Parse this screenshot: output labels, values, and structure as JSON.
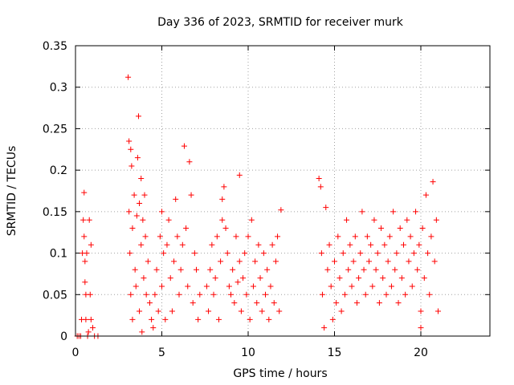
{
  "chart_data": {
    "type": "scatter",
    "title": "Day 336 of 2023, SRMTID for receiver murk",
    "xlabel": "GPS time / hours",
    "ylabel": "SRMTID / TECUs",
    "xlim": [
      0,
      24
    ],
    "ylim": [
      0,
      0.35
    ],
    "xticks": [
      0,
      5,
      10,
      15,
      20
    ],
    "yticks": [
      0,
      0.05,
      0.1,
      0.15,
      0.2,
      0.25,
      0.3,
      0.35
    ],
    "grid": true,
    "marker": "plus",
    "color": "#ff0000",
    "series": [
      {
        "points": [
          [
            0.1,
            0
          ],
          [
            0.2,
            0
          ],
          [
            0.3,
            0
          ],
          [
            0.35,
            0.02
          ],
          [
            0.4,
            0.1
          ],
          [
            0.45,
            0.14
          ],
          [
            0.5,
            0.173
          ],
          [
            0.5,
            0.12
          ],
          [
            0.55,
            0.09
          ],
          [
            0.55,
            0.065
          ],
          [
            0.6,
            0.05
          ],
          [
            0.6,
            0.02
          ],
          [
            0.65,
            0.1
          ],
          [
            0.7,
            0.0
          ],
          [
            0.75,
            0.005
          ],
          [
            0.8,
            0.14
          ],
          [
            0.85,
            0.05
          ],
          [
            0.9,
            0.11
          ],
          [
            0.9,
            0.02
          ],
          [
            1.0,
            0.01
          ],
          [
            1.1,
            0
          ],
          [
            1.3,
            0
          ],
          [
            3.05,
            0.312
          ],
          [
            3.1,
            0.235
          ],
          [
            3.1,
            0.15
          ],
          [
            3.15,
            0.1
          ],
          [
            3.2,
            0.225
          ],
          [
            3.2,
            0.05
          ],
          [
            3.25,
            0.205
          ],
          [
            3.3,
            0.13
          ],
          [
            3.3,
            0.02
          ],
          [
            3.4,
            0.17
          ],
          [
            3.45,
            0.08
          ],
          [
            3.5,
            0.06
          ],
          [
            3.55,
            0.145
          ],
          [
            3.6,
            0.215
          ],
          [
            3.65,
            0.265
          ],
          [
            3.7,
            0.16
          ],
          [
            3.7,
            0.03
          ],
          [
            3.8,
            0.19
          ],
          [
            3.8,
            0.11
          ],
          [
            3.85,
            0.005
          ],
          [
            3.9,
            0.14
          ],
          [
            3.95,
            0.07
          ],
          [
            4.0,
            0.17
          ],
          [
            4.05,
            0.12
          ],
          [
            4.1,
            0.05
          ],
          [
            4.2,
            0.09
          ],
          [
            4.3,
            0.04
          ],
          [
            4.4,
            0.02
          ],
          [
            4.5,
            0.01
          ],
          [
            4.6,
            0.05
          ],
          [
            4.7,
            0.08
          ],
          [
            4.8,
            0.03
          ],
          [
            4.9,
            0.12
          ],
          [
            5.0,
            0.15
          ],
          [
            5.0,
            0.06
          ],
          [
            5.1,
            0.1
          ],
          [
            5.2,
            0.02
          ],
          [
            5.3,
            0.11
          ],
          [
            5.4,
            0.14
          ],
          [
            5.5,
            0.07
          ],
          [
            5.6,
            0.03
          ],
          [
            5.7,
            0.09
          ],
          [
            5.8,
            0.165
          ],
          [
            5.9,
            0.12
          ],
          [
            6.0,
            0.05
          ],
          [
            6.1,
            0.08
          ],
          [
            6.2,
            0.11
          ],
          [
            6.3,
            0.229
          ],
          [
            6.4,
            0.13
          ],
          [
            6.5,
            0.06
          ],
          [
            6.6,
            0.21
          ],
          [
            6.7,
            0.17
          ],
          [
            6.8,
            0.04
          ],
          [
            6.9,
            0.1
          ],
          [
            7.0,
            0.08
          ],
          [
            7.1,
            0.02
          ],
          [
            7.2,
            0.05
          ],
          [
            7.6,
            0.06
          ],
          [
            7.7,
            0.03
          ],
          [
            7.8,
            0.08
          ],
          [
            7.9,
            0.11
          ],
          [
            8.0,
            0.05
          ],
          [
            8.1,
            0.07
          ],
          [
            8.2,
            0.12
          ],
          [
            8.3,
            0.02
          ],
          [
            8.4,
            0.09
          ],
          [
            8.5,
            0.165
          ],
          [
            8.5,
            0.14
          ],
          [
            8.6,
            0.18
          ],
          [
            8.7,
            0.13
          ],
          [
            8.8,
            0.1
          ],
          [
            8.9,
            0.06
          ],
          [
            9.0,
            0.05
          ],
          [
            9.1,
            0.08
          ],
          [
            9.2,
            0.04
          ],
          [
            9.3,
            0.12
          ],
          [
            9.4,
            0.065
          ],
          [
            9.5,
            0.194
          ],
          [
            9.5,
            0.09
          ],
          [
            9.6,
            0.03
          ],
          [
            9.7,
            0.07
          ],
          [
            9.8,
            0.1
          ],
          [
            9.9,
            0.05
          ],
          [
            10.0,
            0.12
          ],
          [
            10.1,
            0.02
          ],
          [
            10.2,
            0.14
          ],
          [
            10.3,
            0.06
          ],
          [
            10.4,
            0.09
          ],
          [
            10.5,
            0.04
          ],
          [
            10.6,
            0.11
          ],
          [
            10.7,
            0.07
          ],
          [
            10.8,
            0.03
          ],
          [
            10.9,
            0.1
          ],
          [
            11.0,
            0.05
          ],
          [
            11.1,
            0.08
          ],
          [
            11.2,
            0.02
          ],
          [
            11.3,
            0.06
          ],
          [
            11.4,
            0.11
          ],
          [
            11.5,
            0.04
          ],
          [
            11.6,
            0.09
          ],
          [
            11.7,
            0.12
          ],
          [
            11.8,
            0.03
          ],
          [
            11.9,
            0.152
          ],
          [
            14.1,
            0.19
          ],
          [
            14.2,
            0.18
          ],
          [
            14.25,
            0.1
          ],
          [
            14.3,
            0.05
          ],
          [
            14.4,
            0.01
          ],
          [
            14.5,
            0.155
          ],
          [
            14.6,
            0.08
          ],
          [
            14.7,
            0.11
          ],
          [
            14.8,
            0.06
          ],
          [
            14.9,
            0.02
          ],
          [
            15.0,
            0.09
          ],
          [
            15.1,
            0.04
          ],
          [
            15.2,
            0.12
          ],
          [
            15.3,
            0.07
          ],
          [
            15.4,
            0.03
          ],
          [
            15.5,
            0.1
          ],
          [
            15.6,
            0.05
          ],
          [
            15.7,
            0.14
          ],
          [
            15.8,
            0.08
          ],
          [
            15.9,
            0.11
          ],
          [
            16.0,
            0.06
          ],
          [
            16.1,
            0.09
          ],
          [
            16.2,
            0.12
          ],
          [
            16.3,
            0.04
          ],
          [
            16.4,
            0.07
          ],
          [
            16.5,
            0.1
          ],
          [
            16.6,
            0.15
          ],
          [
            16.7,
            0.08
          ],
          [
            16.8,
            0.05
          ],
          [
            16.9,
            0.12
          ],
          [
            17.0,
            0.09
          ],
          [
            17.1,
            0.11
          ],
          [
            17.2,
            0.06
          ],
          [
            17.3,
            0.14
          ],
          [
            17.4,
            0.08
          ],
          [
            17.5,
            0.1
          ],
          [
            17.6,
            0.04
          ],
          [
            17.7,
            0.13
          ],
          [
            17.8,
            0.07
          ],
          [
            17.9,
            0.11
          ],
          [
            18.0,
            0.05
          ],
          [
            18.1,
            0.09
          ],
          [
            18.2,
            0.12
          ],
          [
            18.3,
            0.06
          ],
          [
            18.4,
            0.15
          ],
          [
            18.5,
            0.08
          ],
          [
            18.6,
            0.1
          ],
          [
            18.7,
            0.04
          ],
          [
            18.8,
            0.13
          ],
          [
            18.9,
            0.07
          ],
          [
            19.0,
            0.11
          ],
          [
            19.1,
            0.05
          ],
          [
            19.2,
            0.14
          ],
          [
            19.3,
            0.09
          ],
          [
            19.4,
            0.12
          ],
          [
            19.5,
            0.06
          ],
          [
            19.6,
            0.1
          ],
          [
            19.7,
            0.15
          ],
          [
            19.8,
            0.08
          ],
          [
            19.9,
            0.11
          ],
          [
            20.0,
            0.03
          ],
          [
            20.0,
            0.01
          ],
          [
            20.1,
            0.13
          ],
          [
            20.2,
            0.07
          ],
          [
            20.3,
            0.17
          ],
          [
            20.4,
            0.1
          ],
          [
            20.5,
            0.05
          ],
          [
            20.6,
            0.12
          ],
          [
            20.7,
            0.186
          ],
          [
            20.8,
            0.09
          ],
          [
            20.9,
            0.14
          ],
          [
            21.0,
            0.03
          ]
        ]
      }
    ]
  }
}
